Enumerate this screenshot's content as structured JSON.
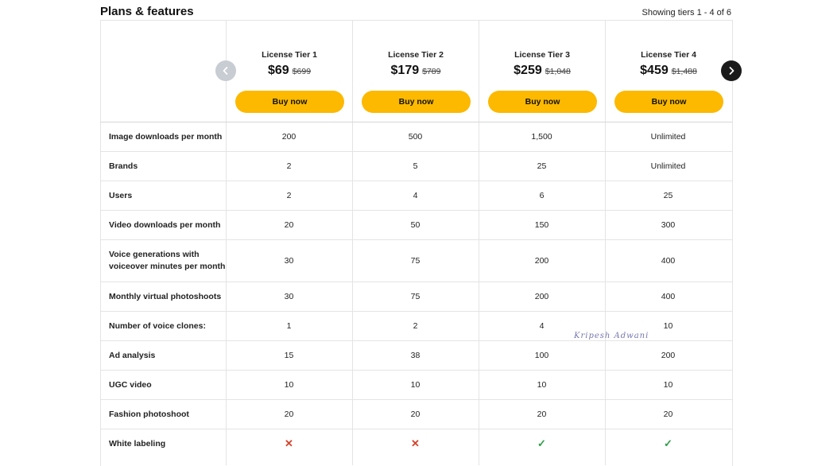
{
  "header": {
    "title": "Plans & features",
    "showing": "Showing tiers 1 - 4 of 6"
  },
  "tiers": [
    {
      "name": "License Tier 1",
      "price": "$69",
      "old_price": "$699",
      "buy": "Buy now"
    },
    {
      "name": "License Tier 2",
      "price": "$179",
      "old_price": "$789",
      "buy": "Buy now"
    },
    {
      "name": "License Tier 3",
      "price": "$259",
      "old_price": "$1,048",
      "buy": "Buy now"
    },
    {
      "name": "License Tier 4",
      "price": "$459",
      "old_price": "$1,488",
      "buy": "Buy now"
    }
  ],
  "navigation": {
    "prev_icon": "chevron-left-icon",
    "next_icon": "chevron-right-icon"
  },
  "features": [
    {
      "label": "Image downloads per month",
      "values": [
        "200",
        "500",
        "1,500",
        "Unlimited"
      ]
    },
    {
      "label": "Brands",
      "values": [
        "2",
        "5",
        "25",
        "Unlimited"
      ]
    },
    {
      "label": "Users",
      "values": [
        "2",
        "4",
        "6",
        "25"
      ]
    },
    {
      "label": "Video downloads per month",
      "values": [
        "20",
        "50",
        "150",
        "300"
      ]
    },
    {
      "label": "Voice generations with voiceover minutes per month",
      "values": [
        "30",
        "75",
        "200",
        "400"
      ]
    },
    {
      "label": "Monthly virtual photoshoots",
      "values": [
        "30",
        "75",
        "200",
        "400"
      ]
    },
    {
      "label": "Number of voice clones:",
      "values": [
        "1",
        "2",
        "4",
        "10"
      ]
    },
    {
      "label": "Ad analysis",
      "values": [
        "15",
        "38",
        "100",
        "200"
      ]
    },
    {
      "label": "UGC video",
      "values": [
        "10",
        "10",
        "10",
        "10"
      ]
    },
    {
      "label": "Fashion photoshoot",
      "values": [
        "20",
        "20",
        "20",
        "20"
      ]
    },
    {
      "label": "White labeling",
      "icons": [
        "cross-icon",
        "cross-icon",
        "check-icon",
        "check-icon"
      ]
    }
  ],
  "watermark": "Kripesh Adwani",
  "colors": {
    "buy_button": "#fcb900",
    "cross": "#d2442c",
    "check": "#2e9e46",
    "next_nav": "#1b1b1b",
    "prev_nav": "#c8ccd3"
  }
}
